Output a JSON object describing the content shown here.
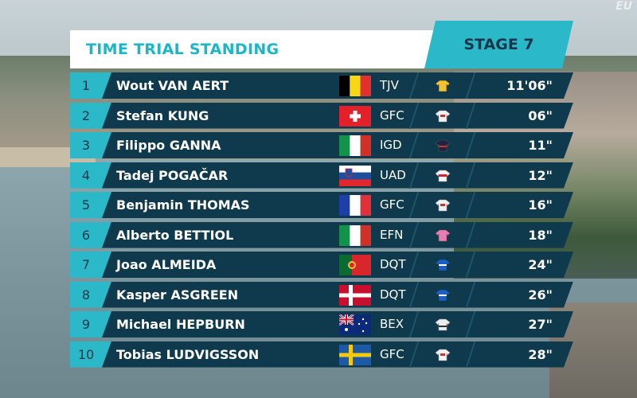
{
  "header": {
    "title": "TIME TRIAL STANDING",
    "stage": "STAGE 7",
    "corner_logo": "EU"
  },
  "colors": {
    "accent": "#2bb8c9",
    "row_bg": "#0f3a4d",
    "title_text": "#1bb6c8"
  },
  "standings": [
    {
      "rank": "1",
      "name": "Wout VAN AERT",
      "country": "belgium",
      "team": "TJV",
      "time": "11'06\"",
      "jersey": "yellow-jersey"
    },
    {
      "rank": "2",
      "name": "Stefan KUNG",
      "country": "switzerland",
      "team": "GFC",
      "time": "06\"",
      "jersey": "white-jersey"
    },
    {
      "rank": "3",
      "name": "Filippo GANNA",
      "country": "italy",
      "team": "IGD",
      "time": "11\"",
      "jersey": "dark-jersey"
    },
    {
      "rank": "4",
      "name": "Tadej POGAČAR",
      "country": "slovenia",
      "team": "UAD",
      "time": "12\"",
      "jersey": "white-red-jersey"
    },
    {
      "rank": "5",
      "name": "Benjamin THOMAS",
      "country": "france",
      "team": "GFC",
      "time": "16\"",
      "jersey": "white-jersey"
    },
    {
      "rank": "6",
      "name": "Alberto BETTIOL",
      "country": "italy",
      "team": "EFN",
      "time": "18\"",
      "jersey": "pink-jersey"
    },
    {
      "rank": "7",
      "name": "Joao ALMEIDA",
      "country": "portugal",
      "team": "DQT",
      "time": "24\"",
      "jersey": "blue-jersey"
    },
    {
      "rank": "8",
      "name": "Kasper ASGREEN",
      "country": "denmark",
      "team": "DQT",
      "time": "26\"",
      "jersey": "blue-jersey"
    },
    {
      "rank": "9",
      "name": "Michael HEPBURN",
      "country": "australia",
      "team": "BEX",
      "time": "27\"",
      "jersey": "white-jersey"
    },
    {
      "rank": "10",
      "name": "Tobias LUDVIGSSON",
      "country": "sweden",
      "team": "GFC",
      "time": "28\"",
      "jersey": "white-jersey"
    }
  ]
}
